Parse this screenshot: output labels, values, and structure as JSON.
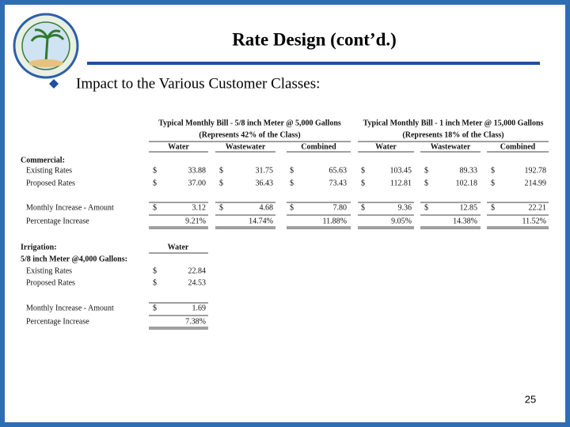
{
  "header": {
    "title": "Rate Design (cont’d.)",
    "bullet": "Impact to the Various Customer Classes:"
  },
  "table": {
    "currency": "$",
    "groups": [
      {
        "title": "Typical Monthly Bill - 5/8 inch Meter @ 5,000 Gallons",
        "subtitle": "(Represents 42% of the Class)"
      },
      {
        "title": "Typical Monthly Bill - 1 inch Meter @ 15,000 Gallons",
        "subtitle": "(Represents 18% of the Class)"
      }
    ],
    "columns": [
      "Water",
      "Wastewater",
      "Combined",
      "Water",
      "Wastewater",
      "Combined"
    ],
    "commercial": {
      "label": "Commercial:",
      "rows": [
        {
          "label": "Existing Rates",
          "cells": [
            "33.88",
            "31.75",
            "65.63",
            "103.45",
            "89.33",
            "192.78"
          ]
        },
        {
          "label": "Proposed Rates",
          "cells": [
            "37.00",
            "36.43",
            "73.43",
            "112.81",
            "102.18",
            "214.99"
          ]
        },
        {
          "label": "Monthly Increase - Amount",
          "cells": [
            "3.12",
            "4.68",
            "7.80",
            "9.36",
            "12.85",
            "22.21"
          ]
        },
        {
          "label": "Percentage Increase",
          "cells": [
            "9.21%",
            "14.74%",
            "11.88%",
            "9.05%",
            "14.38%",
            "11.52%"
          ]
        }
      ]
    },
    "irrigation": {
      "label": "Irrigation:",
      "column": "Water",
      "subtitle": "5/8 inch Meter @4,000 Gallons:",
      "rows": [
        {
          "label": "Existing Rates",
          "cells": [
            "22.84"
          ]
        },
        {
          "label": "Proposed Rates",
          "cells": [
            "24.53"
          ]
        },
        {
          "label": "Monthly Increase - Amount",
          "cells": [
            "1.69"
          ]
        },
        {
          "label": "Percentage Increase",
          "cells": [
            "7.38%"
          ]
        }
      ]
    }
  },
  "footer": {
    "page": "25"
  }
}
